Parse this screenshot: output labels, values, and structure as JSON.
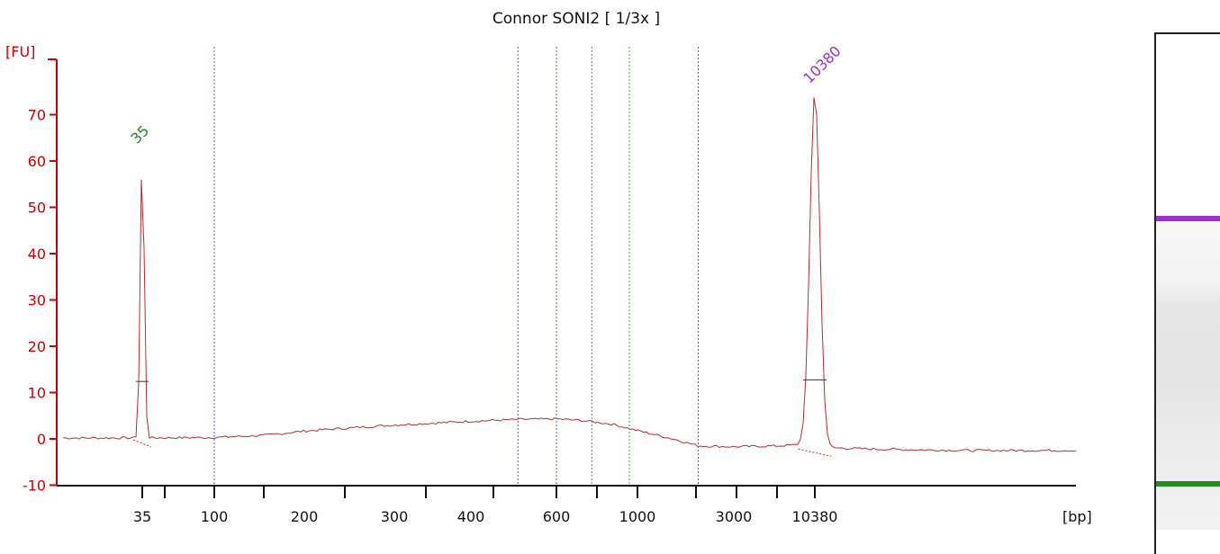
{
  "chart_data": {
    "type": "line",
    "title": "Connor SONI2  [ 1/3x ]",
    "ylabel": "[FU]",
    "xlabel": "[bp]",
    "ylim": [
      -10,
      80
    ],
    "yticks": [
      -10,
      0,
      10,
      20,
      30,
      40,
      50,
      60,
      70
    ],
    "xtick_labels": [
      "35",
      "100",
      "200",
      "300",
      "400",
      "600",
      "1000",
      "3000",
      "10380"
    ],
    "x_scale": "piecewise (ladder-calibrated)",
    "series": [
      {
        "color": "#b03030",
        "points": [
          [
            35,
            0.2
          ],
          [
            100,
            0.3
          ],
          [
            150,
            0.8
          ],
          [
            200,
            1.7
          ],
          [
            300,
            3.0
          ],
          [
            400,
            3.8
          ],
          [
            500,
            4.2
          ],
          [
            600,
            4.3
          ],
          [
            700,
            4.0
          ],
          [
            850,
            3.2
          ],
          [
            1000,
            1.8
          ],
          [
            1500,
            0.0
          ],
          [
            2000,
            -1.5
          ],
          [
            3000,
            -1.7
          ],
          [
            6000,
            -1.5
          ],
          [
            9000,
            -1.2
          ],
          [
            10380,
            -1.8
          ],
          [
            12000,
            -2.2
          ],
          [
            15000,
            -2.5
          ],
          [
            20000,
            -2.5
          ]
        ]
      }
    ],
    "peaks": [
      {
        "label": "35",
        "x": 35,
        "height": 62,
        "color": "#228b22"
      },
      {
        "label": "10380",
        "x": 10380,
        "height": 75,
        "color": "#9932cc"
      }
    ],
    "region_markers": [
      {
        "x": 100,
        "color": "#5555cc"
      },
      {
        "x": 500,
        "color": "#5555cc"
      },
      {
        "x": 600,
        "color": "#5555cc"
      },
      {
        "x": 750,
        "color": "#44aa44"
      },
      {
        "x": 950,
        "color": "#44aa44"
      },
      {
        "x": 2000,
        "color": "#5555cc"
      }
    ],
    "gel_bands": [
      {
        "name": "upper marker",
        "color": "#9932cc"
      },
      {
        "name": "lower marker",
        "color": "#228b22"
      }
    ],
    "colors": {
      "axis": "#cc0000",
      "trace": "#b03030"
    }
  }
}
